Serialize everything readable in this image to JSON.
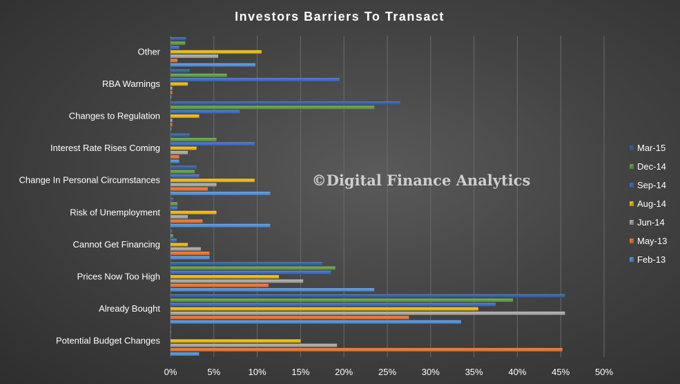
{
  "chart_data": {
    "type": "bar",
    "orientation": "horizontal",
    "title": "Investors Barriers To Transact",
    "watermark": "©Digital Finance Analytics",
    "xlim": [
      0,
      50
    ],
    "x_ticks": [
      "0%",
      "5%",
      "10%",
      "15%",
      "20%",
      "25%",
      "30%",
      "35%",
      "40%",
      "45%",
      "50%"
    ],
    "grid": true,
    "legend_position": "right",
    "categories": [
      "Other",
      "RBA Warnings",
      "Changes to Regulation",
      "Interest Rate Rises Coming",
      "Change In Personal Circumstances",
      "Risk of Unemployment",
      "Cannot Get Financing",
      "Prices Now Too High",
      "Already Bought",
      "Potential Budget Changes"
    ],
    "series": [
      {
        "name": "Mar-15",
        "color": "#2e5d9e",
        "values": [
          1.8,
          2.2,
          26.5,
          2.2,
          3.0,
          0.3,
          0.2,
          17.5,
          45.5,
          0.1
        ]
      },
      {
        "name": "Dec-14",
        "color": "#5f9a3c",
        "values": [
          1.7,
          6.5,
          23.5,
          5.3,
          2.8,
          0.8,
          0.3,
          19.0,
          39.5,
          0.0
        ]
      },
      {
        "name": "Sep-14",
        "color": "#3a66c4",
        "values": [
          1.0,
          19.5,
          8.0,
          9.7,
          3.3,
          0.8,
          0.7,
          18.5,
          37.5,
          0.0
        ]
      },
      {
        "name": "Aug-14",
        "color": "#e7b80a",
        "values": [
          10.5,
          2.0,
          3.3,
          3.0,
          9.7,
          5.3,
          2.0,
          12.5,
          35.5,
          15.0
        ]
      },
      {
        "name": "Jun-14",
        "color": "#a5a5a5",
        "values": [
          5.5,
          0.2,
          0.2,
          2.0,
          5.3,
          2.0,
          3.5,
          15.3,
          45.5,
          19.2
        ]
      },
      {
        "name": "May-13",
        "color": "#e8702a",
        "values": [
          0.8,
          0.2,
          0.2,
          1.0,
          4.3,
          3.7,
          4.5,
          11.3,
          27.5,
          45.2
        ]
      },
      {
        "name": "Feb-13",
        "color": "#4a8fd8",
        "values": [
          9.8,
          0.1,
          0.1,
          1.0,
          11.5,
          11.5,
          4.5,
          23.5,
          33.5,
          3.3
        ]
      }
    ]
  }
}
